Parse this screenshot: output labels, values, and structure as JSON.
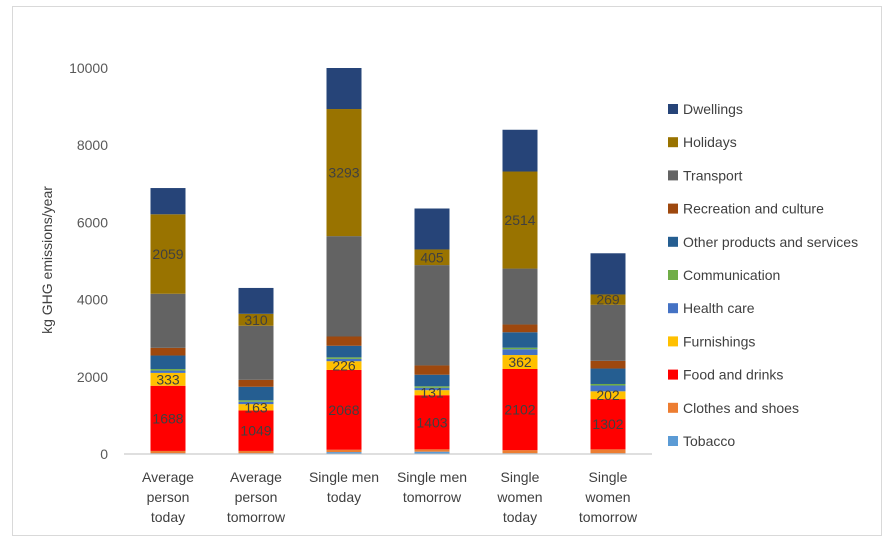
{
  "chart_data": {
    "type": "bar",
    "stacked": true,
    "ylabel": "kg GHG emissions/year",
    "ylim": [
      0,
      10000
    ],
    "yticks": [
      0,
      2000,
      4000,
      6000,
      8000,
      10000
    ],
    "grid": false,
    "legend_position": "right",
    "categories": [
      [
        "Average",
        "person",
        "today"
      ],
      [
        "Average",
        "person",
        "tomorrow"
      ],
      [
        "Single men",
        "today"
      ],
      [
        "Single men",
        "tomorrow"
      ],
      [
        "Single",
        "women",
        "today"
      ],
      [
        "Single",
        "women",
        "tomorrow"
      ]
    ],
    "series": [
      {
        "name": "Tobacco",
        "color": "#5b9bd5",
        "values": [
          20,
          20,
          50,
          60,
          20,
          20
        ]
      },
      {
        "name": "Clothes and shoes",
        "color": "#ed7d31",
        "values": [
          60,
          60,
          60,
          60,
          80,
          100
        ]
      },
      {
        "name": "Food and drinks",
        "color": "#ff0000",
        "values": [
          1688,
          1049,
          2068,
          1403,
          2102,
          1302
        ],
        "labels": [
          "1688",
          "1049",
          "2068",
          "1403",
          "2102",
          "1302"
        ]
      },
      {
        "name": "Furnishings",
        "color": "#ffc000",
        "values": [
          333,
          163,
          226,
          131,
          362,
          202
        ],
        "labels": [
          "333",
          "163",
          "226",
          "131",
          "362",
          "202"
        ]
      },
      {
        "name": "Health care",
        "color": "#4472c4",
        "values": [
          60,
          60,
          60,
          60,
          150,
          150
        ]
      },
      {
        "name": "Communication",
        "color": "#70ad47",
        "values": [
          40,
          40,
          40,
          40,
          40,
          40
        ]
      },
      {
        "name": "Other products and services",
        "color": "#255e91",
        "values": [
          350,
          350,
          300,
          300,
          400,
          400
        ]
      },
      {
        "name": "Recreation and culture",
        "color": "#9e480e",
        "values": [
          200,
          180,
          240,
          240,
          200,
          200
        ]
      },
      {
        "name": "Transport",
        "color": "#636363",
        "values": [
          1400,
          1400,
          2600,
          2600,
          1450,
          1450
        ]
      },
      {
        "name": "Holidays",
        "color": "#997300",
        "values": [
          2059,
          310,
          3293,
          405,
          2514,
          269
        ],
        "labels": [
          "2059",
          "310",
          "3293",
          "405",
          "2514",
          "269"
        ]
      },
      {
        "name": "Dwellings",
        "color": "#264478",
        "values": [
          680,
          670,
          1063,
          1061,
          1082,
          1067
        ]
      }
    ]
  }
}
